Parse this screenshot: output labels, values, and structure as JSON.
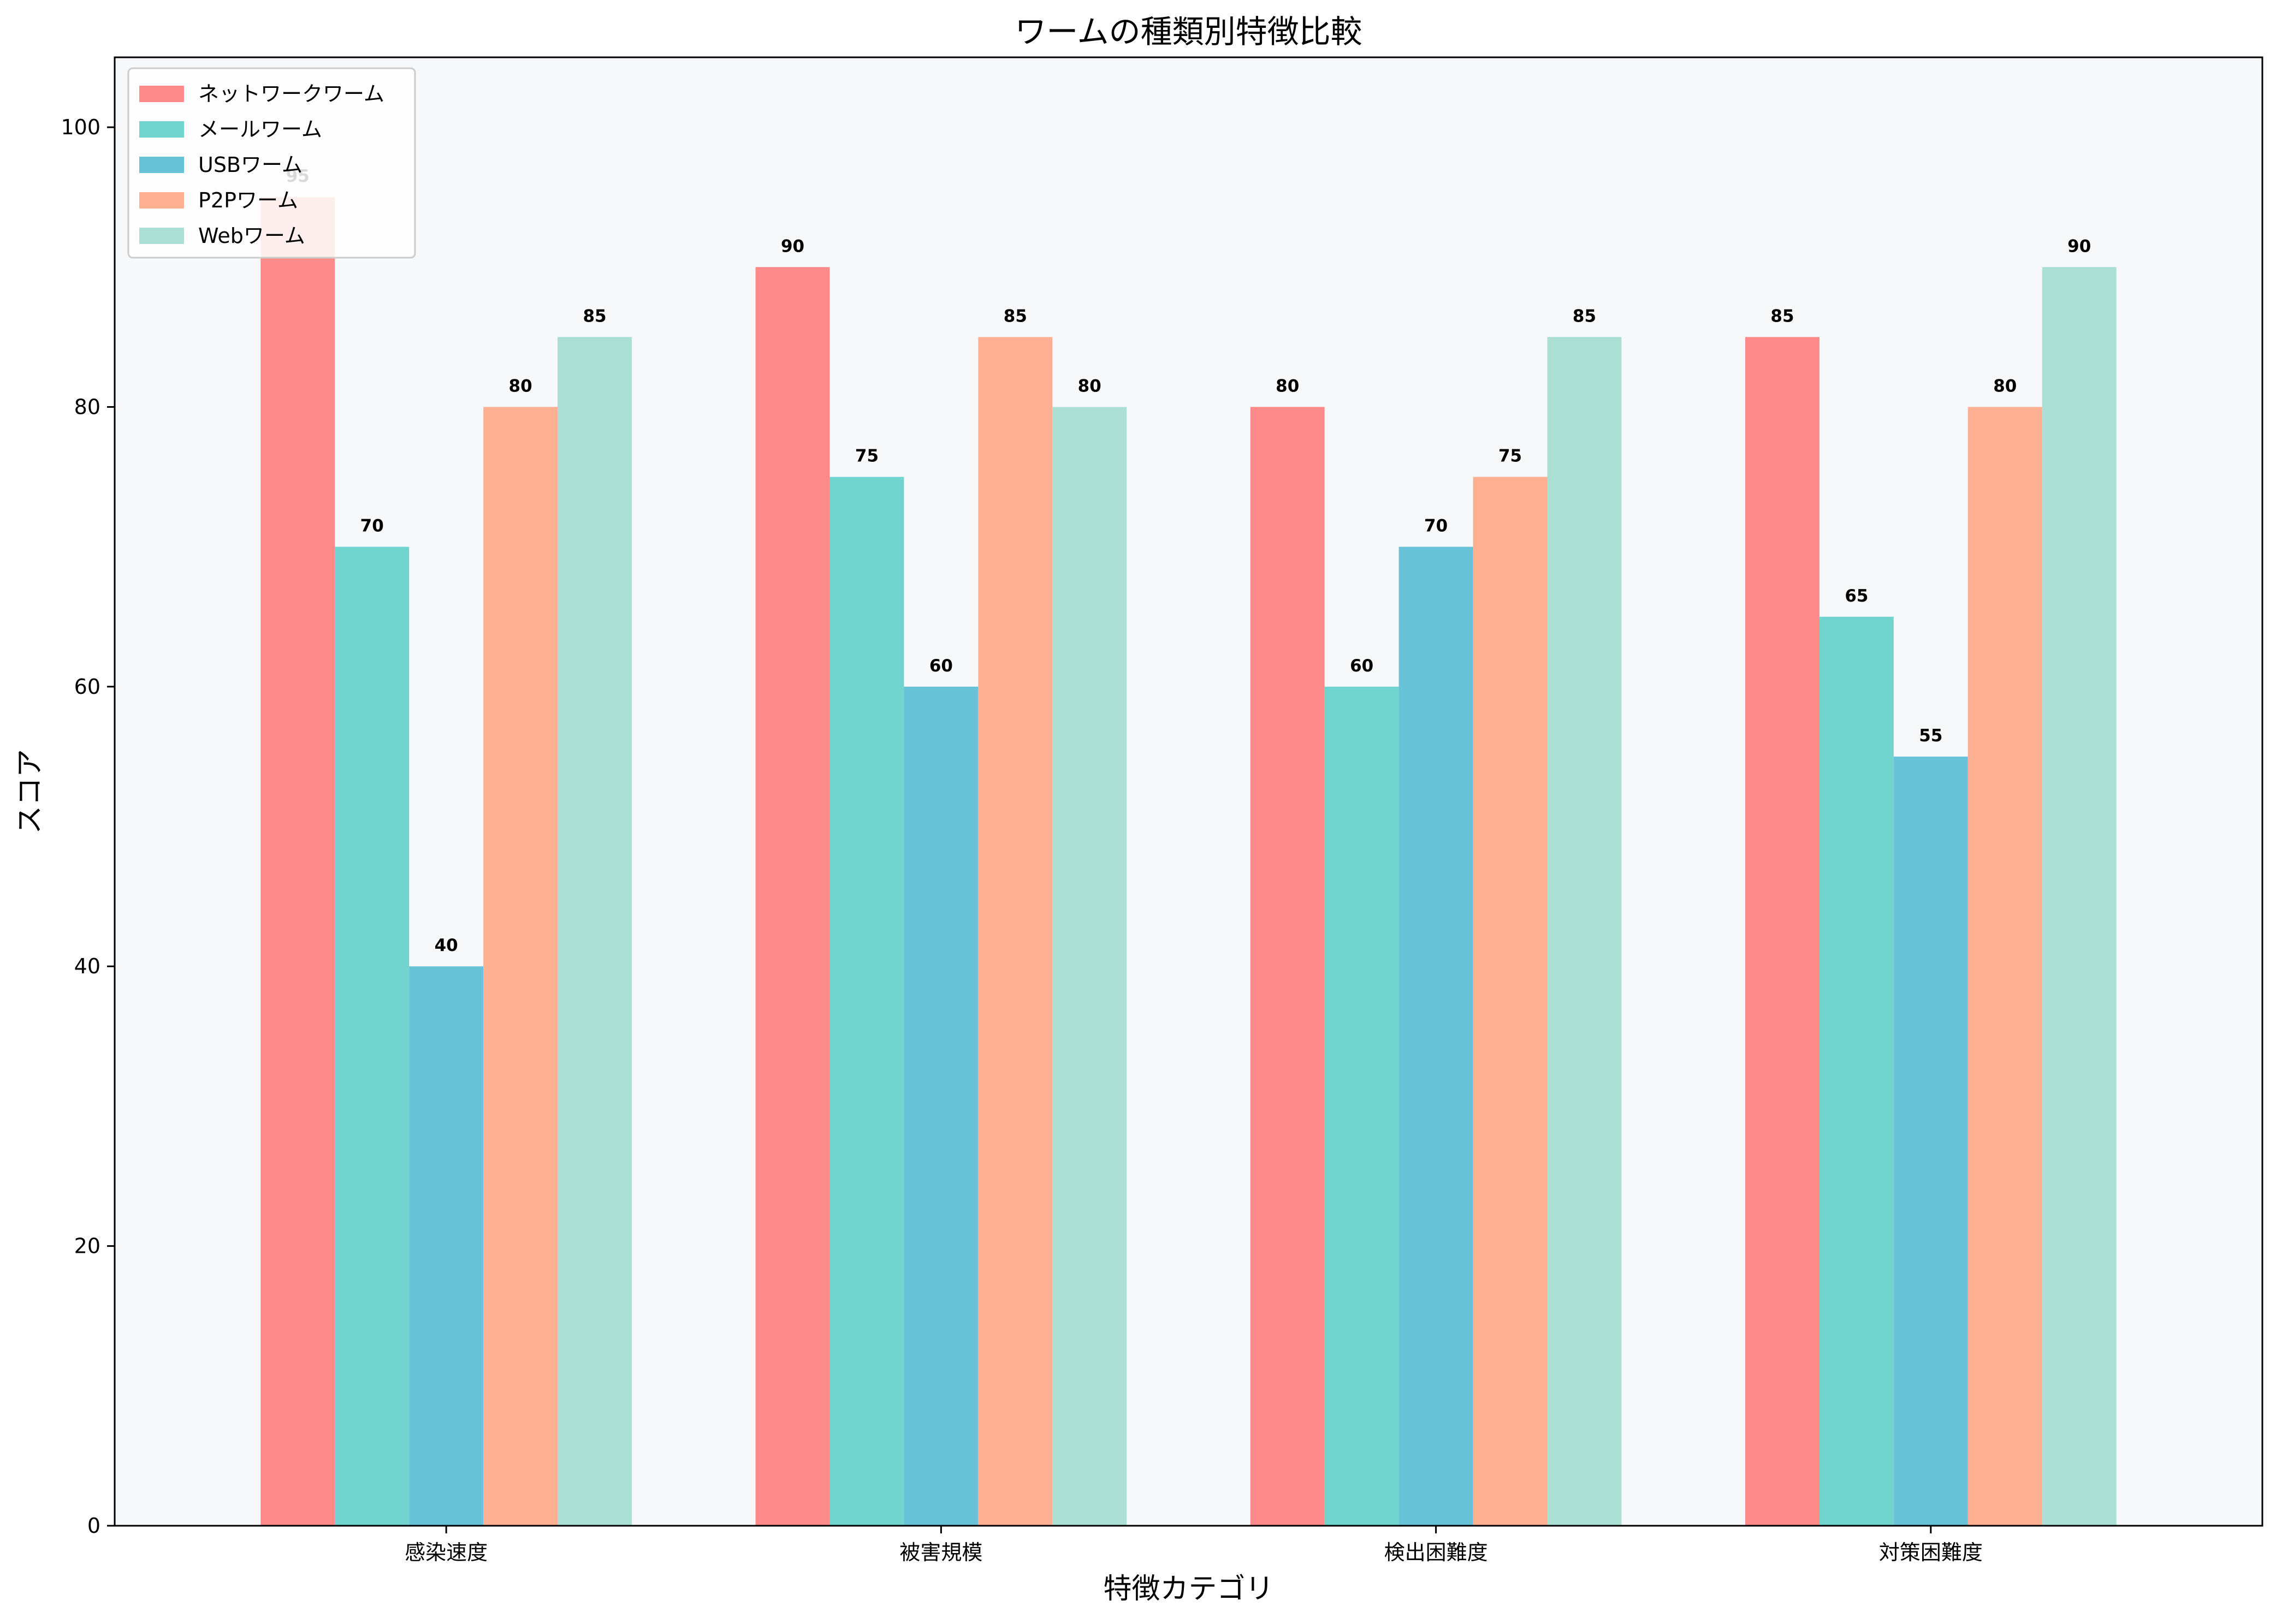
{
  "chart_data": {
    "type": "bar",
    "title": "ワームの種類別特徴比較",
    "xlabel": "特徴カテゴリ",
    "ylabel": "スコア",
    "ylim": [
      0,
      105
    ],
    "yticks": [
      0,
      20,
      40,
      60,
      80,
      100
    ],
    "categories": [
      "感染速度",
      "被害規模",
      "検出困難度",
      "対策困難度"
    ],
    "series": [
      {
        "name": "ネットワークワーム",
        "color": "#FF8A8A",
        "values": [
          95,
          90,
          80,
          85
        ]
      },
      {
        "name": "メールワーム",
        "color": "#72D4CE",
        "values": [
          70,
          75,
          60,
          65
        ]
      },
      {
        "name": "USBワーム",
        "color": "#69C3D8",
        "values": [
          40,
          60,
          70,
          55
        ]
      },
      {
        "name": "P2Pワーム",
        "color": "#FDB092",
        "values": [
          80,
          85,
          75,
          80
        ]
      },
      {
        "name": "Webワーム",
        "color": "#ABDFD3",
        "values": [
          85,
          80,
          85,
          90
        ]
      }
    ],
    "grid": false,
    "legend_position": "top-left",
    "plot_background": "#F7F8FA"
  }
}
